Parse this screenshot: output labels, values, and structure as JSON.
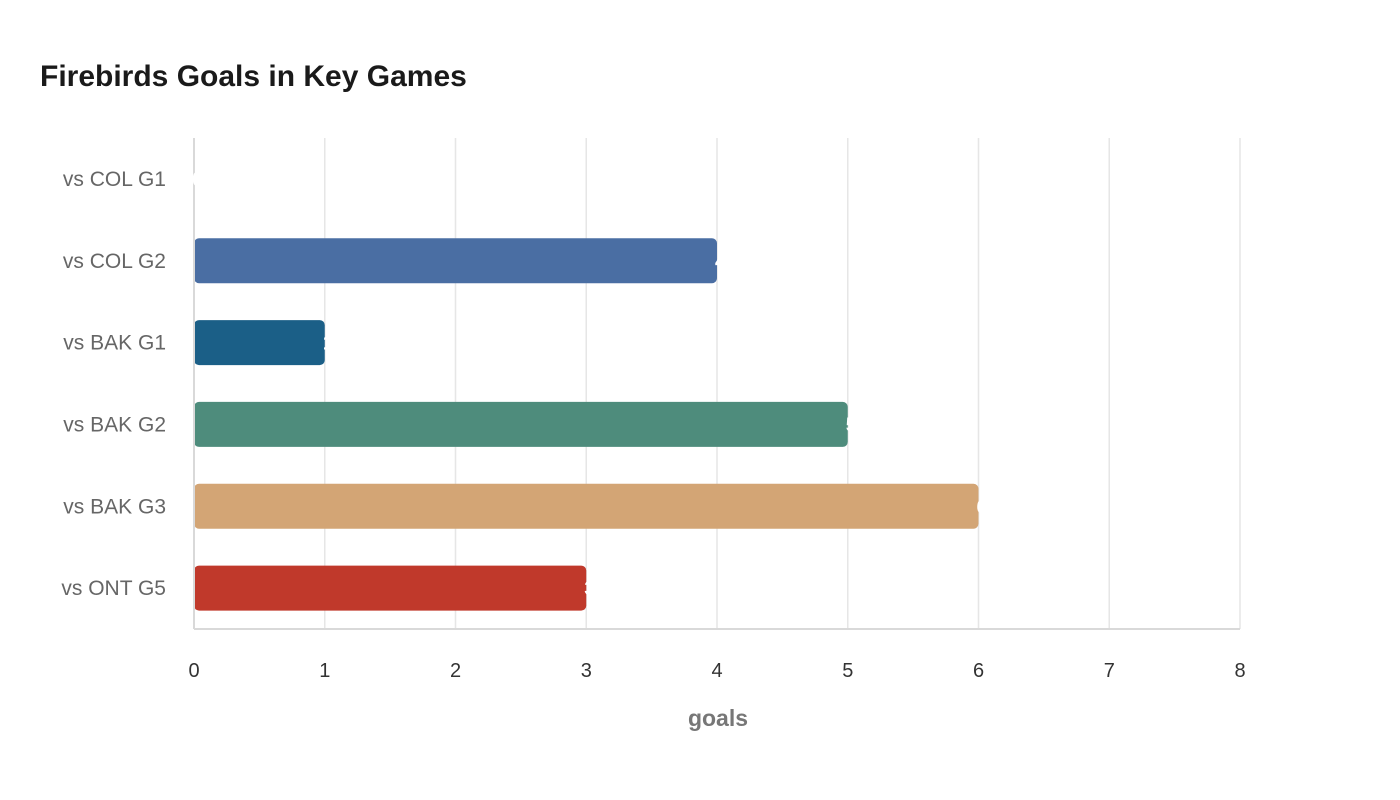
{
  "chart_data": {
    "type": "bar",
    "orientation": "horizontal",
    "title": "Firebirds Goals in Key Games",
    "xlabel": "goals",
    "ylabel": "",
    "categories": [
      "vs COL G1",
      "vs COL G2",
      "vs BAK G1",
      "vs BAK G2",
      "vs BAK G3",
      "vs ONT G5"
    ],
    "values": [
      0,
      4,
      1,
      5,
      6,
      3
    ],
    "colors": [
      "#4a6ea3",
      "#4a6ea3",
      "#1b5f87",
      "#4e8c7c",
      "#d3a575",
      "#c0392b"
    ],
    "xlim": [
      0,
      8
    ],
    "xticks": [
      "0",
      "1",
      "2",
      "3",
      "4",
      "5",
      "6",
      "7",
      "8"
    ],
    "grid": true,
    "legend": "none",
    "data_labels": [
      "0",
      "4",
      "1",
      "5",
      "6",
      "3"
    ]
  }
}
